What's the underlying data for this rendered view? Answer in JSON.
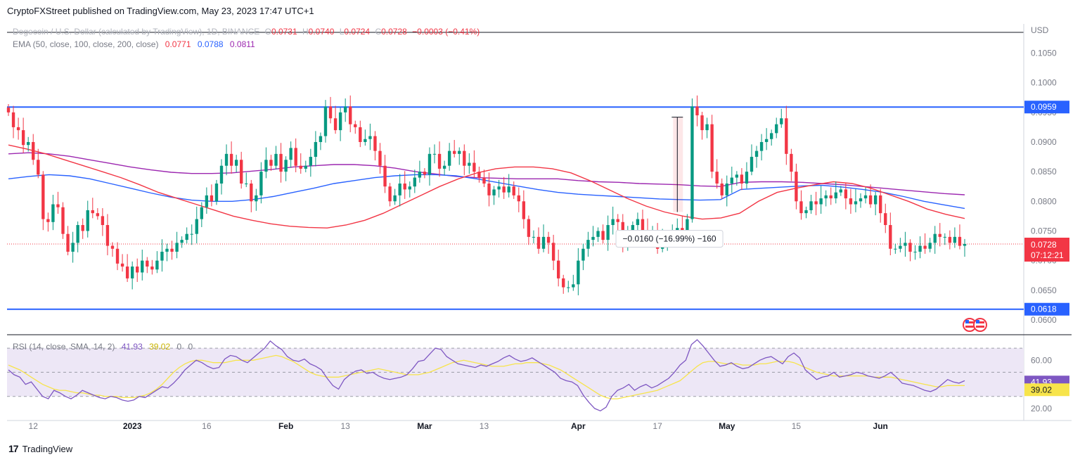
{
  "header": {
    "publisher": "CryptoFXStreet published on TradingView.com, May 23, 2023 17:47 UTC+1"
  },
  "footer": {
    "brand": "TradingView",
    "logo_icon": "tradingview-logo-icon"
  },
  "legend": {
    "symbol": "Dogecoin / U.S. Dollar (calculated by TradingView), 1D, BINANCE",
    "o_label": "O",
    "o": "0.0731",
    "h_label": "H",
    "h": "0.0740",
    "l_label": "L",
    "l": "0.0724",
    "c_label": "C",
    "c": "0.0728",
    "change": "−0.0003 (−0.41%)",
    "ema_label": "EMA (50, close, 100, close, 200, close)",
    "ema50": "0.0771",
    "ema100": "0.0788",
    "ema200": "0.0811",
    "rsi_label": "RSI (14, close, SMA, 14, 2)",
    "rsi": "41.93",
    "rsi_ma": "39.02",
    "rsi_x1": "0",
    "rsi_x2": "0"
  },
  "colors": {
    "up": "#089981",
    "down": "#f23645",
    "ema50": "#f23645",
    "ema100": "#2962ff",
    "ema200": "#9c27b0",
    "level": "#2962ff",
    "rsi": "#7e57c2",
    "rsi_ma": "#f7e44b",
    "rsi_band": "#ede7f6"
  },
  "chart_data": {
    "type": "candlestick",
    "currency": "USD",
    "price_axis": {
      "ylim": [
        0.0575,
        0.1085
      ],
      "ticks": [
        "0.1050",
        "0.1000",
        "0.0950",
        "0.0900",
        "0.0850",
        "0.0800",
        "0.0750",
        "0.0700",
        "0.0650",
        "0.0600"
      ]
    },
    "levels": [
      {
        "value": "0.0959"
      },
      {
        "value": "0.0618"
      }
    ],
    "last_price": {
      "value": "0.0728",
      "countdown": "07:12:21"
    },
    "measure": {
      "from": 0.0942,
      "to": 0.0782,
      "label": "−0.0160 (−16.99%) −160"
    },
    "time_axis": {
      "start": "2022-12-07",
      "labels": [
        {
          "date": "2022-12-12",
          "text": "12"
        },
        {
          "date": "2023-01-01",
          "text": "2023"
        },
        {
          "date": "2023-01-16",
          "text": "16"
        },
        {
          "date": "2023-02-01",
          "text": "Feb"
        },
        {
          "date": "2023-02-13",
          "text": "13"
        },
        {
          "date": "2023-03-01",
          "text": "Mar"
        },
        {
          "date": "2023-03-13",
          "text": "13"
        },
        {
          "date": "2023-04-01",
          "text": "Apr"
        },
        {
          "date": "2023-04-17",
          "text": "17"
        },
        {
          "date": "2023-05-01",
          "text": "May"
        },
        {
          "date": "2023-05-15",
          "text": "15"
        },
        {
          "date": "2023-06-01",
          "text": "Jun"
        }
      ]
    },
    "closes": [
      0.095,
      0.0925,
      0.092,
      0.0895,
      0.09,
      0.087,
      0.0845,
      0.077,
      0.0765,
      0.0795,
      0.079,
      0.0745,
      0.0715,
      0.073,
      0.076,
      0.075,
      0.0785,
      0.078,
      0.0775,
      0.076,
      0.0725,
      0.072,
      0.0695,
      0.069,
      0.067,
      0.069,
      0.068,
      0.07,
      0.069,
      0.0685,
      0.07,
      0.0715,
      0.072,
      0.0715,
      0.073,
      0.0735,
      0.0745,
      0.0745,
      0.077,
      0.079,
      0.081,
      0.08,
      0.083,
      0.086,
      0.088,
      0.086,
      0.087,
      0.083,
      0.083,
      0.08,
      0.081,
      0.085,
      0.087,
      0.086,
      0.088,
      0.085,
      0.087,
      0.089,
      0.086,
      0.0855,
      0.086,
      0.0875,
      0.09,
      0.091,
      0.096,
      0.094,
      0.092,
      0.095,
      0.096,
      0.093,
      0.0925,
      0.09,
      0.0905,
      0.091,
      0.0885,
      0.086,
      0.0825,
      0.08,
      0.081,
      0.083,
      0.082,
      0.0825,
      0.084,
      0.085,
      0.0845,
      0.088,
      0.088,
      0.0855,
      0.086,
      0.0885,
      0.088,
      0.0885,
      0.086,
      0.0865,
      0.085,
      0.084,
      0.083,
      0.081,
      0.082,
      0.0825,
      0.0815,
      0.0825,
      0.081,
      0.08,
      0.077,
      0.074,
      0.074,
      0.072,
      0.074,
      0.073,
      0.07,
      0.067,
      0.0655,
      0.0655,
      0.066,
      0.07,
      0.072,
      0.0735,
      0.074,
      0.075,
      0.0735,
      0.076,
      0.077,
      0.0765,
      0.0725,
      0.074,
      0.076,
      0.077,
      0.075,
      0.074,
      0.075,
      0.072,
      0.0735,
      0.074,
      0.075,
      0.0755,
      0.0745,
      0.077,
      0.096,
      0.0945,
      0.092,
      0.093,
      0.085,
      0.083,
      0.081,
      0.083,
      0.084,
      0.0845,
      0.083,
      0.085,
      0.0875,
      0.0885,
      0.09,
      0.0905,
      0.0915,
      0.093,
      0.094,
      0.088,
      0.085,
      0.08,
      0.078,
      0.0785,
      0.08,
      0.0795,
      0.0805,
      0.081,
      0.0805,
      0.0815,
      0.082,
      0.0805,
      0.0795,
      0.08,
      0.0805,
      0.081,
      0.0795,
      0.081,
      0.078,
      0.076,
      0.072,
      0.072,
      0.0725,
      0.073,
      0.0715,
      0.0715,
      0.0725,
      0.072,
      0.073,
      0.0745,
      0.074,
      0.074,
      0.073,
      0.074,
      0.0725,
      0.0728
    ],
    "ema50": [
      0.0895,
      0.0888,
      0.088,
      0.087,
      0.086,
      0.085,
      0.084,
      0.0828,
      0.0815,
      0.0805,
      0.0795,
      0.0785,
      0.0775,
      0.0768,
      0.0762,
      0.0758,
      0.0756,
      0.0755,
      0.076,
      0.0768,
      0.078,
      0.0795,
      0.081,
      0.0825,
      0.0838,
      0.0848,
      0.0855,
      0.0858,
      0.0858,
      0.0855,
      0.0848,
      0.0835,
      0.082,
      0.0805,
      0.0792,
      0.0782,
      0.0775,
      0.077,
      0.0772,
      0.078,
      0.08,
      0.0815,
      0.0822,
      0.0828,
      0.0833,
      0.083,
      0.0822,
      0.0811,
      0.08,
      0.0787,
      0.0778,
      0.0771
    ],
    "ema100": [
      0.0838,
      0.0842,
      0.0845,
      0.0843,
      0.0838,
      0.083,
      0.0822,
      0.0814,
      0.0807,
      0.0802,
      0.08,
      0.08,
      0.0803,
      0.0808,
      0.0815,
      0.0822,
      0.083,
      0.0835,
      0.084,
      0.0843,
      0.0845,
      0.0845,
      0.0843,
      0.0838,
      0.0832,
      0.0826,
      0.082,
      0.0815,
      0.0812,
      0.081,
      0.0808,
      0.0806,
      0.0804,
      0.0803,
      0.0802,
      0.0803,
      0.082,
      0.0822,
      0.0824,
      0.0826,
      0.0827,
      0.0824,
      0.082,
      0.0815,
      0.0808,
      0.08,
      0.0794,
      0.0788
    ],
    "ema200": [
      0.088,
      0.0882,
      0.088,
      0.0876,
      0.087,
      0.0864,
      0.0858,
      0.0853,
      0.0849,
      0.0847,
      0.0847,
      0.0848,
      0.0851,
      0.0854,
      0.0858,
      0.086,
      0.0862,
      0.0862,
      0.086,
      0.0856,
      0.085,
      0.0846,
      0.0842,
      0.084,
      0.0839,
      0.0838,
      0.0838,
      0.0838,
      0.0835,
      0.0833,
      0.0832,
      0.083,
      0.0829,
      0.0828,
      0.0826,
      0.0825,
      0.0832,
      0.0833,
      0.0833,
      0.0832,
      0.083,
      0.0828,
      0.0825,
      0.0822,
      0.0819,
      0.0816,
      0.0813,
      0.0811
    ],
    "rsi_axis": {
      "ylim": [
        10,
        80
      ],
      "ticks": [
        "60.00",
        "20.00"
      ],
      "band": [
        30,
        70
      ],
      "mid": 50
    },
    "rsi": [
      52,
      48,
      46,
      40,
      42,
      36,
      30,
      28,
      35,
      33,
      30,
      28,
      31,
      35,
      33,
      31,
      29,
      28,
      30,
      29,
      27,
      26,
      27,
      30,
      29,
      32,
      35,
      38,
      37,
      41,
      46,
      52,
      56,
      60,
      58,
      55,
      53,
      54,
      61,
      64,
      63,
      60,
      58,
      62,
      66,
      70,
      76,
      72,
      69,
      63,
      60,
      59,
      61,
      57,
      55,
      52,
      45,
      39,
      36,
      44,
      48,
      51,
      52,
      49,
      50,
      47,
      45,
      44,
      45,
      46,
      48,
      53,
      59,
      60,
      65,
      70,
      69,
      63,
      60,
      57,
      56,
      55,
      54,
      56,
      55,
      57,
      59,
      62,
      64,
      61,
      59,
      60,
      62,
      59,
      56,
      53,
      50,
      45,
      43,
      42,
      39,
      31,
      25,
      20,
      18,
      21,
      30,
      35,
      37,
      40,
      35,
      38,
      40,
      37,
      39,
      42,
      45,
      50,
      56,
      60,
      73,
      77,
      72,
      66,
      60,
      55,
      56,
      58,
      55,
      53,
      54,
      57,
      60,
      62,
      63,
      60,
      57,
      63,
      66,
      62,
      52,
      48,
      44,
      46,
      47,
      50,
      46,
      47,
      48,
      50,
      49,
      47,
      46,
      45,
      47,
      50,
      46,
      41,
      40,
      39,
      37,
      35,
      34,
      36,
      40,
      44,
      42,
      41,
      43
    ],
    "rsi_ma": [
      56,
      54,
      52,
      49,
      46,
      43,
      40,
      38,
      36,
      35,
      35,
      34,
      33,
      33,
      32,
      31,
      31,
      30,
      30,
      30,
      29,
      29,
      29,
      30,
      31,
      33,
      36,
      40,
      45,
      50,
      54,
      57,
      59,
      60,
      60,
      59,
      58,
      58,
      58,
      59,
      60,
      60,
      60,
      60,
      61,
      62,
      63,
      64,
      63,
      61,
      59,
      56,
      53,
      50,
      48,
      47,
      46,
      46,
      46,
      47,
      48,
      49,
      50,
      51,
      52,
      53,
      52,
      51,
      50,
      49,
      48,
      48,
      48,
      49,
      50,
      52,
      54,
      56,
      58,
      59,
      60,
      59,
      58,
      57,
      56,
      55,
      55,
      55,
      56,
      57,
      57,
      58,
      58,
      58,
      57,
      56,
      54,
      52,
      49,
      46,
      43,
      40,
      37,
      34,
      31,
      29,
      28,
      28,
      29,
      30,
      31,
      32,
      33,
      34,
      35,
      37,
      39,
      41,
      43,
      47,
      51,
      55,
      58,
      59,
      59,
      58,
      57,
      57,
      57,
      56,
      56,
      56,
      57,
      57,
      58,
      59,
      59,
      59,
      58,
      56,
      54,
      52,
      50,
      49,
      48,
      47,
      47,
      47,
      47,
      47,
      47,
      47,
      46,
      46,
      46,
      46,
      45,
      44,
      43,
      42,
      41,
      40,
      39,
      38,
      38,
      39,
      39,
      39,
      39
    ]
  }
}
